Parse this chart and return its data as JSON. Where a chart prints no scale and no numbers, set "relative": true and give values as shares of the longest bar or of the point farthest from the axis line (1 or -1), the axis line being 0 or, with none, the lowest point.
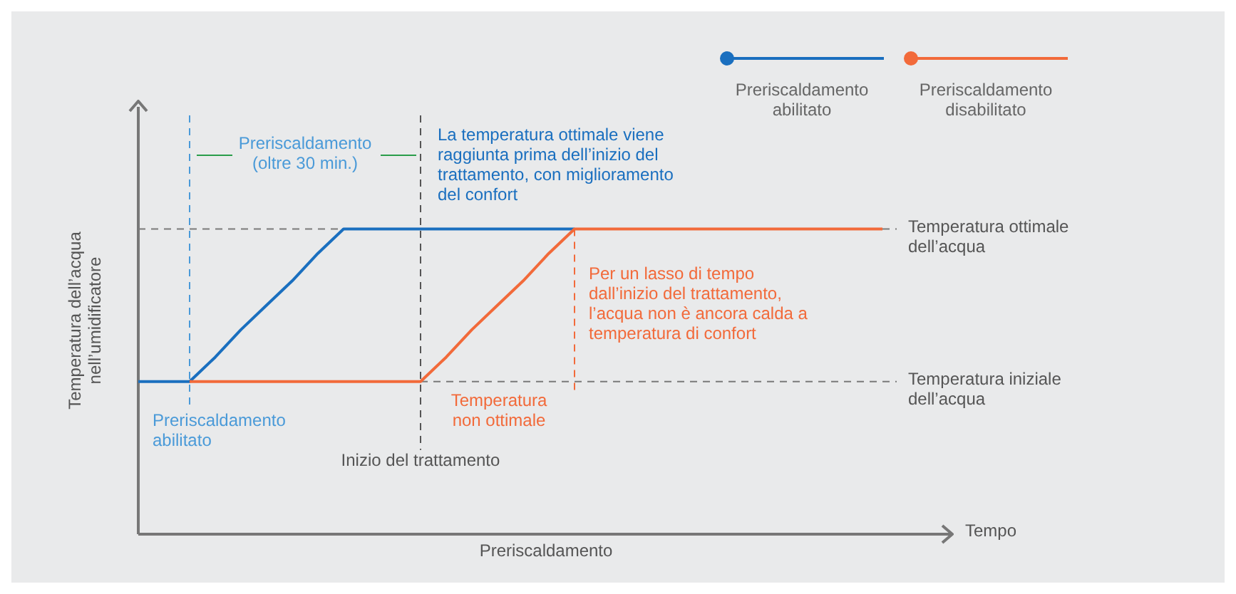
{
  "chart_data": {
    "type": "line",
    "relative": true,
    "xlabel": "Tempo",
    "ylabel": "Temperatura dell’acqua nell’umidificatore",
    "categories": [
      null,
      null,
      null,
      null,
      null,
      null,
      null,
      null,
      null,
      null,
      null,
      null,
      null,
      null,
      null,
      null,
      null,
      null,
      null,
      null,
      null,
      null,
      null,
      null,
      null,
      null,
      null,
      null,
      null,
      null
    ],
    "series": [
      {
        "name": "Preriscaldamento abilitato",
        "color": "#1a6fbf",
        "values": [
          0.5,
          0.5,
          0.5,
          0.58,
          0.67,
          0.75,
          0.83,
          0.92,
          1,
          1,
          1,
          1,
          1,
          1,
          1,
          1,
          1,
          1,
          null,
          null,
          null,
          null,
          null,
          null,
          null,
          null,
          null,
          null,
          null,
          null
        ]
      },
      {
        "name": "Preriscaldamento disabilitato",
        "color": "#f26a3a",
        "values": [
          null,
          null,
          0.5,
          0.5,
          0.5,
          0.5,
          0.5,
          0.5,
          0.5,
          0.5,
          0.5,
          0.5,
          0.58,
          0.67,
          0.75,
          0.83,
          0.92,
          1,
          1,
          1,
          1,
          1,
          1,
          1,
          1,
          1,
          1,
          1,
          1,
          1
        ]
      }
    ],
    "ref_lines": [
      {
        "axis": "y",
        "value": 1,
        "label": "Temperatura ottimale dell’acqua",
        "color": "#7a7a7a",
        "line_style": "dashed"
      },
      {
        "axis": "y",
        "value": 0.5,
        "label": "Temperatura iniziale dell’acqua",
        "color": "#7a7a7a",
        "line_style": "dashed"
      }
    ],
    "annotations": [
      "Preriscaldamento (oltre 30 min.)",
      "La temperatura ottimale viene raggiunta prima dell’inizio del trattamento, con miglioramento del confort",
      "Temperatura non ottimale",
      "Preriscaldamento",
      "Preriscaldamento abilitato",
      "Inizio del trattamento",
      "Per un lasso di tempo dall’inizio del trattamento, l’acqua non è ancora calda a temperatura di confort"
    ],
    "legend": "top right",
    "marker": "none",
    "line_style": "solid"
  }
}
